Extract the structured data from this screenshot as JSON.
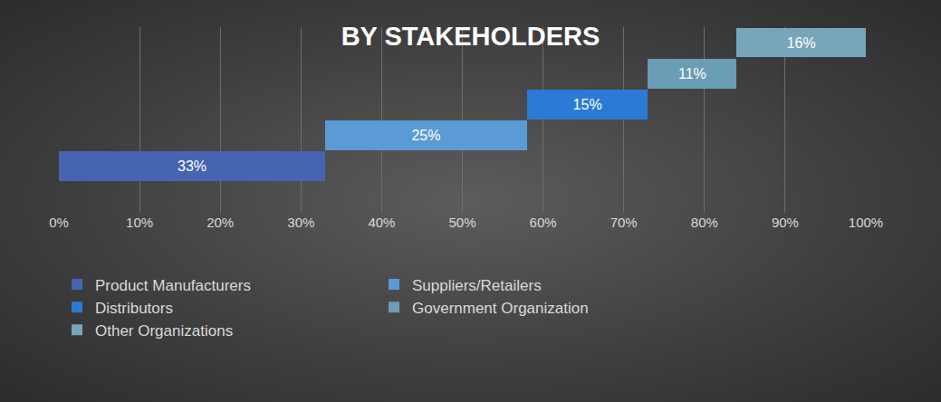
{
  "chart_data": {
    "type": "bar",
    "title": "BY STAKEHOLDERS",
    "orientation": "horizontal",
    "stacked": true,
    "categories": [
      "Product Manufacturers",
      "Suppliers/Retailers",
      "Distributors",
      "Government Organization",
      "Other Organizations"
    ],
    "values": [
      33,
      25,
      15,
      11,
      16
    ],
    "value_labels": [
      "33%",
      "25%",
      "15%",
      "11%",
      "16%"
    ],
    "colors": [
      "#4565b0",
      "#5b9bd5",
      "#2b7bd6",
      "#6b9db4",
      "#77a6bc"
    ],
    "xlim": [
      0,
      100
    ],
    "xticks": [
      {
        "value": 0,
        "label": "0%"
      },
      {
        "value": 10,
        "label": "10%"
      },
      {
        "value": 20,
        "label": "20%"
      },
      {
        "value": 30,
        "label": "30%"
      },
      {
        "value": 40,
        "label": "40%"
      },
      {
        "value": 50,
        "label": "50%"
      },
      {
        "value": 60,
        "label": "60%"
      },
      {
        "value": 70,
        "label": "70%"
      },
      {
        "value": 80,
        "label": "80%"
      },
      {
        "value": 90,
        "label": "90%"
      },
      {
        "value": 100,
        "label": "100%"
      }
    ],
    "grid": true,
    "legend": "bottom",
    "data_labels": true,
    "tick_labels": "x"
  }
}
